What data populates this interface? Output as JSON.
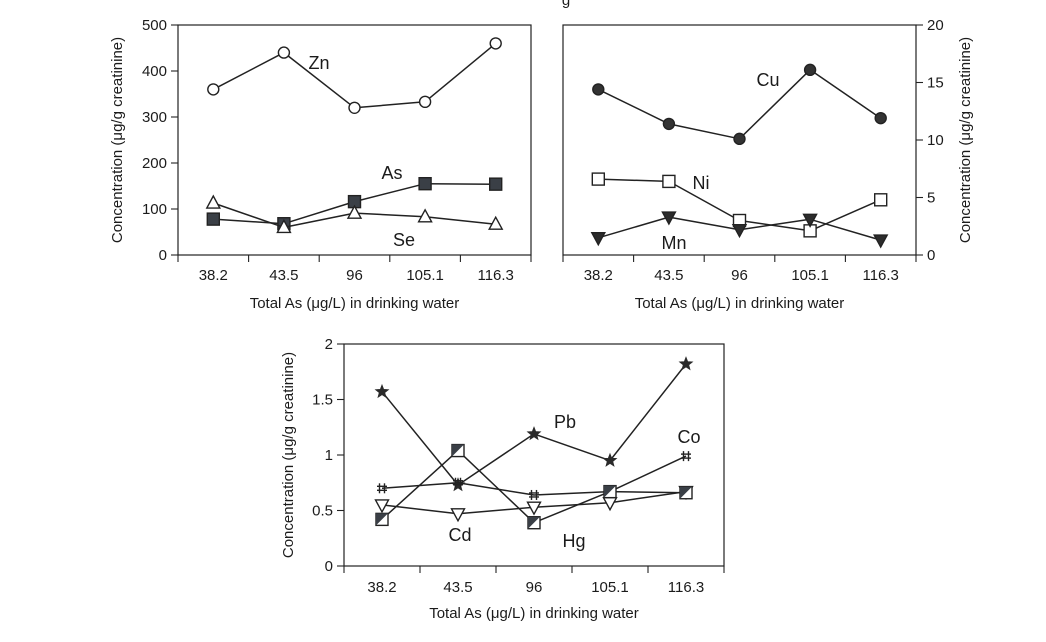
{
  "page_title_fragment": "g",
  "chart_data": [
    {
      "type": "line",
      "x": [
        "38.2",
        "43.5",
        "96",
        "105.1",
        "116.3"
      ],
      "xlabel": "Total As (μg/L) in drinking water",
      "ylabel": "Concentration (μg/g creatinine)",
      "ylim": [
        0,
        500
      ],
      "yticks": [
        "0",
        "100",
        "200",
        "300",
        "400",
        "500"
      ],
      "series": [
        {
          "name": "Zn",
          "marker": "open-circle",
          "values": [
            360,
            440,
            320,
            333,
            460
          ]
        },
        {
          "name": "As",
          "marker": "filled-square",
          "values": [
            78,
            68,
            116,
            155,
            154
          ]
        },
        {
          "name": "Se",
          "marker": "open-triangle",
          "values": [
            113,
            60,
            91,
            83,
            67
          ]
        }
      ]
    },
    {
      "type": "line",
      "x": [
        "38.2",
        "43.5",
        "96",
        "105.1",
        "116.3"
      ],
      "xlabel": "Total As (μg/L) in drinking water",
      "ylabel": "Concentration (μg/g creatinine)",
      "ylim": [
        0,
        20
      ],
      "yticks": [
        "0",
        "5",
        "10",
        "15",
        "20"
      ],
      "series": [
        {
          "name": "Cu",
          "marker": "filled-circle",
          "values": [
            14.4,
            11.4,
            10.1,
            16.1,
            11.9
          ]
        },
        {
          "name": "Ni",
          "marker": "open-square",
          "values": [
            6.6,
            6.4,
            3.0,
            2.1,
            4.8
          ]
        },
        {
          "name": "Mn",
          "marker": "filled-down-triangle",
          "values": [
            1.5,
            3.3,
            2.2,
            3.1,
            1.3
          ]
        }
      ]
    },
    {
      "type": "line",
      "x": [
        "38.2",
        "43.5",
        "96",
        "105.1",
        "116.3"
      ],
      "xlabel": "Total As (μg/L) in drinking water",
      "ylabel": "Concentration (μg/g creatinine)",
      "ylim": [
        0,
        2
      ],
      "yticks": [
        "0",
        "0.5",
        "1",
        "1.5",
        "2"
      ],
      "series": [
        {
          "name": "Pb",
          "marker": "filled-star",
          "values": [
            1.57,
            0.73,
            1.19,
            0.95,
            1.82
          ]
        },
        {
          "name": "Co",
          "marker": "hash",
          "values": [
            0.7,
            0.75,
            0.64,
            0.67,
            0.99
          ]
        },
        {
          "name": "Cd",
          "marker": "open-down-triangle",
          "values": [
            0.55,
            0.47,
            0.53,
            0.57,
            0.67
          ]
        },
        {
          "name": "Hg",
          "marker": "half-filled-square",
          "values": [
            0.42,
            1.04,
            0.39,
            0.67,
            0.66
          ]
        }
      ]
    }
  ]
}
